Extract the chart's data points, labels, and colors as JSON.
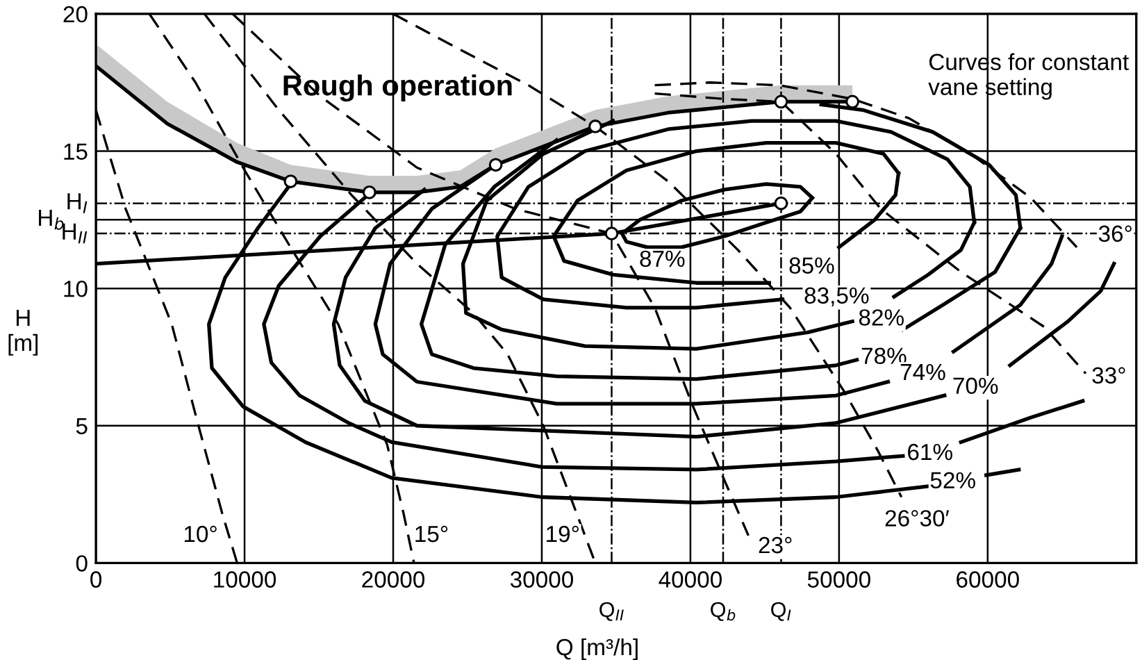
{
  "chart_data": {
    "type": "line",
    "xlabel": "Q [m³/h]",
    "ylabel": "H\n[m]",
    "xlim": [
      0,
      70000
    ],
    "xticks": [
      0,
      10000,
      20000,
      30000,
      40000,
      50000,
      60000
    ],
    "ylim": [
      0,
      20
    ],
    "yticks": [
      0,
      5,
      10,
      15,
      20
    ],
    "grid": true,
    "series": [
      {
        "color": "#000000",
        "line_style": "solid",
        "x": [
          0,
          4800,
          9500,
          13100,
          18400,
          21600,
          24500,
          26900,
          33600,
          38500,
          46100,
          50900
        ],
        "values": [
          18.1,
          16.0,
          14.6,
          13.9,
          13.5,
          13.5,
          13.7,
          14.5,
          15.9,
          16.4,
          16.8,
          16.8
        ],
        "lower": [
          18.1,
          16.0,
          14.6,
          13.9,
          13.5,
          13.5,
          13.7,
          14.5,
          15.9,
          16.4,
          16.8,
          16.8
        ],
        "upper": [
          18.9,
          16.8,
          15.3,
          14.5,
          14.1,
          14.1,
          14.3,
          15.1,
          16.5,
          17.0,
          17.4,
          17.4
        ]
      },
      {
        "color": "#000000",
        "line_style": "solid",
        "x": [
          35400,
          36600,
          39400,
          42300,
          45100,
          47400,
          48200
        ],
        "values": [
          12.0,
          12.5,
          13.2,
          13.6,
          13.8,
          13.7,
          13.3
        ]
      },
      {
        "color": "#000000",
        "line_style": "solid",
        "x": [
          35400,
          35700,
          37100,
          39400,
          42300,
          45100,
          47400,
          48200
        ],
        "values": [
          12.0,
          11.7,
          11.5,
          11.5,
          11.9,
          12.4,
          12.8,
          13.3
        ]
      },
      {
        "color": "#000000",
        "line_style": "solid",
        "x": [
          50000,
          52400,
          53800,
          54000
        ],
        "values": [
          11.5,
          12.5,
          13.4,
          14.2
        ]
      },
      {
        "color": "#000000",
        "line_style": "solid",
        "x": [
          54000,
          53000,
          49800,
          45100,
          40400,
          35700,
          32400,
          30800,
          31500,
          34800,
          40400,
          45300
        ],
        "values": [
          14.2,
          14.9,
          15.3,
          15.3,
          15.0,
          14.3,
          13.2,
          11.9,
          11.0,
          10.5,
          10.2,
          10.2
        ]
      },
      {
        "color": "#000000",
        "line_style": "solid",
        "x": [
          53700,
          56000,
          58200,
          59100
        ],
        "values": [
          9.7,
          10.5,
          11.4,
          12.4
        ]
      },
      {
        "color": "#000000",
        "line_style": "solid",
        "x": [
          59100,
          58800,
          57300,
          53500,
          49800,
          44100,
          38500,
          32900,
          29100,
          27000,
          27300,
          30100,
          35700,
          40400,
          46200
        ],
        "values": [
          12.4,
          13.7,
          14.7,
          15.7,
          16.1,
          16.1,
          15.8,
          15.0,
          13.7,
          11.9,
          10.4,
          9.6,
          9.3,
          9.3,
          9.6
        ]
      },
      {
        "color": "#000000",
        "line_style": "solid",
        "x": [
          34800,
          30100,
          26300,
          24700,
          24900,
          27300,
          32900,
          40400,
          47900,
          50900
        ],
        "values": [
          16.1,
          14.9,
          13.2,
          10.9,
          9.1,
          8.5,
          7.9,
          7.8,
          8.4,
          8.8
        ]
      },
      {
        "color": "#000000",
        "line_style": "solid",
        "x": [
          54300,
          57000,
          60500,
          62200
        ],
        "values": [
          8.5,
          9.4,
          10.6,
          12.2
        ]
      },
      {
        "color": "#000000",
        "line_style": "solid",
        "x": [
          48800,
          51600,
          56300,
          60100,
          61900,
          62200
        ],
        "values": [
          16.7,
          16.5,
          15.7,
          14.5,
          13.4,
          12.2
        ]
      },
      {
        "color": "#000000",
        "line_style": "solid",
        "x": [
          31000,
          26800,
          23500,
          21900,
          22600,
          25400,
          31000,
          40400,
          49800,
          51200
        ],
        "values": [
          15.4,
          13.7,
          11.6,
          8.7,
          7.6,
          7.1,
          6.8,
          6.7,
          7.2,
          7.4
        ]
      },
      {
        "color": "#000000",
        "line_style": "solid",
        "x": [
          57700,
          62200,
          64300,
          65000
        ],
        "values": [
          7.7,
          9.4,
          10.9,
          11.9
        ]
      },
      {
        "color": "#000000",
        "line_style": "solid",
        "x": [
          26900,
          22600,
          19800,
          18800,
          19300,
          21600,
          31000,
          40400,
          49800,
          53300
        ],
        "values": [
          14.5,
          12.9,
          10.9,
          8.7,
          7.6,
          6.6,
          5.8,
          5.8,
          6.1,
          6.6
        ]
      },
      {
        "color": "#000000",
        "line_style": "solid",
        "x": [
          61500,
          65400,
          67600,
          68500
        ],
        "values": [
          7.2,
          8.8,
          9.9,
          10.9
        ]
      },
      {
        "color": "#000000",
        "line_style": "solid",
        "x": [
          22100,
          18800,
          16800,
          16000,
          16400,
          18100,
          21600,
          31000,
          40400,
          49800,
          57100
        ],
        "values": [
          13.6,
          12.2,
          10.4,
          8.7,
          7.2,
          5.9,
          5.0,
          4.8,
          4.6,
          5.1,
          6.1
        ]
      },
      {
        "color": "#000000",
        "line_style": "solid",
        "x": [
          18300,
          15100,
          12300,
          11300,
          11800,
          13700,
          17000,
          19900,
          30000,
          40400,
          49800,
          54300
        ],
        "values": [
          13.4,
          11.9,
          10.1,
          8.7,
          7.3,
          6.1,
          5.1,
          4.4,
          3.5,
          3.4,
          3.7,
          3.9
        ]
      },
      {
        "color": "#000000",
        "line_style": "solid",
        "x": [
          58200,
          62900,
          66400
        ],
        "values": [
          4.4,
          5.3,
          5.9
        ]
      },
      {
        "color": "#000000",
        "line_style": "solid",
        "x": [
          13100,
          10900,
          8700,
          7600,
          7800,
          9900,
          14100,
          19900,
          30000,
          40400,
          49800,
          56100
        ],
        "values": [
          13.8,
          12.2,
          10.4,
          8.7,
          7.1,
          5.7,
          4.4,
          3.1,
          2.4,
          2.2,
          2.4,
          2.8
        ]
      },
      {
        "color": "#000000",
        "line_style": "solid",
        "x": [
          59900,
          62100
        ],
        "values": [
          3.2,
          3.4
        ]
      },
      {
        "color": "#000000",
        "line_style": "solid",
        "x": [
          0,
          34700,
          46100
        ],
        "values": [
          10.9,
          12.0,
          13.1
        ]
      },
      {
        "color": "#000000",
        "line_style": "dashed",
        "x": [
          0,
          2000,
          5100,
          6900,
          8500,
          9500
        ],
        "values": [
          16.5,
          12.9,
          8.7,
          5.0,
          1.8,
          0
        ]
      },
      {
        "color": "#000000",
        "line_style": "dashed",
        "x": [
          3600,
          6700,
          9900,
          13200,
          16300,
          18100,
          19600,
          20700,
          21400
        ],
        "values": [
          20.0,
          17.5,
          14.4,
          11.4,
          8.7,
          6.3,
          4.3,
          1.8,
          0
        ]
      },
      {
        "color": "#000000",
        "line_style": "dashed",
        "x": [
          7300,
          12300,
          17200,
          21600,
          25400,
          27700,
          30100,
          32000,
          33600
        ],
        "values": [
          20.0,
          16.5,
          13.4,
          10.9,
          9.1,
          7.6,
          5.0,
          2.3,
          0
        ]
      },
      {
        "color": "#000000",
        "line_style": "dashed",
        "x": [
          9200,
          15100,
          21600,
          28200,
          34700,
          37600,
          40100,
          42300,
          43900
        ],
        "values": [
          20.0,
          17.0,
          14.4,
          12.9,
          12.0,
          9.3,
          5.8,
          3.0,
          1.0
        ]
      },
      {
        "color": "#000000",
        "line_style": "dashed",
        "x": [
          20000,
          24500,
          29100,
          33600,
          38500,
          43200,
          46700,
          50400,
          52600,
          54200
        ],
        "values": [
          20.0,
          18.7,
          17.4,
          15.9,
          13.9,
          11.4,
          9.3,
          6.2,
          4.1,
          2.4
        ]
      },
      {
        "color": "#000000",
        "line_style": "dashed",
        "x": [
          37600,
          42300,
          46100,
          49800,
          52800,
          58200,
          63800,
          66600
        ],
        "values": [
          17.1,
          16.9,
          16.8,
          14.9,
          12.9,
          10.6,
          8.6,
          6.9
        ]
      },
      {
        "color": "#000000",
        "line_style": "dashed",
        "x": [
          37600,
          41300,
          46000,
          50900,
          54700,
          59100,
          62900,
          66000
        ],
        "values": [
          17.4,
          17.5,
          17.4,
          16.9,
          16.2,
          14.8,
          13.3,
          11.5
        ]
      },
      {
        "type": "scatter",
        "color": "#000000",
        "marker": "circle",
        "x": [
          13100,
          18400,
          26900,
          33600,
          46100,
          50900,
          34700,
          46100
        ],
        "values": [
          13.9,
          13.5,
          14.5,
          15.9,
          16.8,
          16.8,
          12.0,
          13.1
        ]
      }
    ],
    "ref_lines": [
      {
        "axis": "y",
        "value": 13.1,
        "label": "H$_{I}$",
        "line_style": "dashdot"
      },
      {
        "axis": "y",
        "value": 12.5,
        "label": "H$_{b}$",
        "line_style": "solid"
      },
      {
        "axis": "y",
        "value": 12.0,
        "label": "H$_{II}$",
        "line_style": "dashdot"
      },
      {
        "axis": "x",
        "value": 34700,
        "label": "Q$_{II}$",
        "line_style": "dashdot"
      },
      {
        "axis": "x",
        "value": 42200,
        "label": "Q$_{b}$",
        "line_style": "dashdot"
      },
      {
        "axis": "x",
        "value": 46100,
        "label": "Q$_{I}$",
        "line_style": "dashdot"
      }
    ],
    "annotations": [
      "Rough operation",
      "Curves for constant\nvane setting",
      {
        "text": "87%",
        "x": 39400,
        "y": 11.5
      },
      {
        "text": "85%",
        "x": 45300,
        "y": 10.2
      },
      {
        "text": "83,5%",
        "x": 46200,
        "y": 9.6
      },
      {
        "text": "82%",
        "x": 50900,
        "y": 8.8
      },
      {
        "text": "78%",
        "x": 51200,
        "y": 7.4
      },
      {
        "text": "74%",
        "x": 53300,
        "y": 6.6
      },
      {
        "text": "70%",
        "x": 57100,
        "y": 6.1
      },
      {
        "text": "61%",
        "x": 54300,
        "y": 3.9
      },
      {
        "text": "52%",
        "x": 56100,
        "y": 2.8
      },
      {
        "text": "10°",
        "x": 9500,
        "y": 0
      },
      {
        "text": "15°",
        "x": 21400,
        "y": 0
      },
      {
        "text": "19°",
        "x": 33600,
        "y": 0
      },
      {
        "text": "23°",
        "x": 43900,
        "y": 1.0
      },
      {
        "text": "26°30′",
        "x": 54200,
        "y": 2.4
      },
      {
        "text": "33°",
        "x": 66600,
        "y": 6.9
      },
      {
        "text": "36°",
        "x": 66000,
        "y": 11.5
      }
    ]
  }
}
